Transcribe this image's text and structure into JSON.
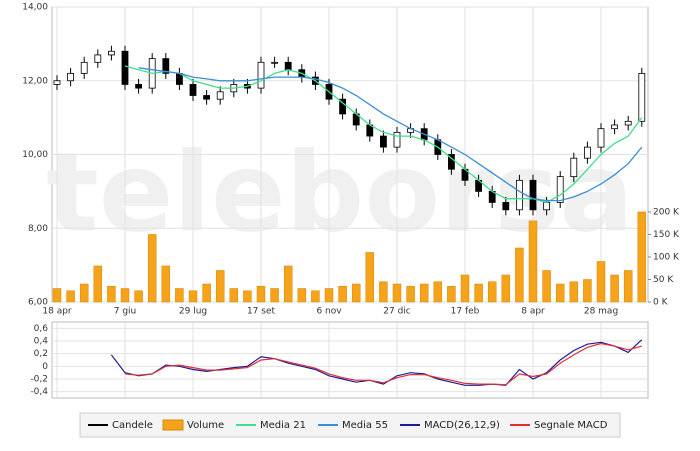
{
  "chart_data": [
    {
      "type": "candlestick",
      "watermark": "teleborsa",
      "categories": [
        "18 apr",
        null,
        null,
        null,
        null,
        "7 giu",
        null,
        null,
        null,
        null,
        "29 lug",
        null,
        null,
        null,
        null,
        "17 set",
        null,
        null,
        null,
        null,
        "6 nov",
        null,
        null,
        null,
        null,
        "27 dic",
        null,
        null,
        null,
        null,
        "17 feb",
        null,
        null,
        null,
        null,
        "8 apr",
        null,
        null,
        null,
        null,
        "28 mag",
        null,
        null,
        null
      ],
      "series": [
        {
          "name": "Candele",
          "color": "#000000",
          "open": [
            11.9,
            12.0,
            12.2,
            12.5,
            12.7,
            12.8,
            11.9,
            11.8,
            12.6,
            12.2,
            11.9,
            11.6,
            11.5,
            11.7,
            11.9,
            11.8,
            12.5,
            12.5,
            12.3,
            12.1,
            11.9,
            11.5,
            11.1,
            10.8,
            10.5,
            10.2,
            10.6,
            10.7,
            10.4,
            10.0,
            9.6,
            9.3,
            9.0,
            8.7,
            8.5,
            9.3,
            8.5,
            8.7,
            9.4,
            9.9,
            10.2,
            10.7,
            10.8,
            10.9
          ],
          "high": [
            12.15,
            12.35,
            12.65,
            12.85,
            12.95,
            12.95,
            12.05,
            12.75,
            12.75,
            12.35,
            12.05,
            11.75,
            11.85,
            12.05,
            12.05,
            12.65,
            12.65,
            12.65,
            12.45,
            12.25,
            12.05,
            11.65,
            11.25,
            10.95,
            10.65,
            10.75,
            10.85,
            10.85,
            10.55,
            10.15,
            9.75,
            9.45,
            9.15,
            8.85,
            9.45,
            9.45,
            8.85,
            9.55,
            10.05,
            10.35,
            10.85,
            10.95,
            11.05,
            12.35
          ],
          "low": [
            11.75,
            11.85,
            12.05,
            12.35,
            12.55,
            11.75,
            11.65,
            11.65,
            12.05,
            11.75,
            11.45,
            11.35,
            11.35,
            11.55,
            11.65,
            11.65,
            12.35,
            12.15,
            11.95,
            11.75,
            11.35,
            10.95,
            10.65,
            10.35,
            10.05,
            10.05,
            10.45,
            10.25,
            9.85,
            9.45,
            9.15,
            8.85,
            8.55,
            8.35,
            8.35,
            8.35,
            8.35,
            8.55,
            9.25,
            9.75,
            10.05,
            10.55,
            10.65,
            10.75
          ],
          "close": [
            12.0,
            12.2,
            12.5,
            12.7,
            12.8,
            11.9,
            11.8,
            12.6,
            12.2,
            11.9,
            11.6,
            11.5,
            11.7,
            11.9,
            11.8,
            12.5,
            12.5,
            12.3,
            12.1,
            11.9,
            11.5,
            11.1,
            10.8,
            10.5,
            10.2,
            10.6,
            10.7,
            10.4,
            10.0,
            9.6,
            9.3,
            9.0,
            8.7,
            8.5,
            9.3,
            8.5,
            8.7,
            9.4,
            9.9,
            10.2,
            10.7,
            10.8,
            10.9,
            12.2
          ]
        },
        {
          "name": "Volume",
          "color": "#f5a31a",
          "type": "bar",
          "axis": "y2",
          "values": [
            30,
            25,
            40,
            80,
            35,
            30,
            25,
            150,
            80,
            30,
            25,
            40,
            70,
            30,
            25,
            35,
            30,
            80,
            30,
            25,
            30,
            35,
            40,
            110,
            45,
            40,
            35,
            40,
            45,
            35,
            60,
            40,
            45,
            60,
            120,
            180,
            70,
            40,
            45,
            50,
            90,
            60,
            70,
            200
          ]
        },
        {
          "name": "Media 21",
          "color": "#3ee08c",
          "type": "line",
          "values": [
            null,
            null,
            null,
            null,
            null,
            12.4,
            12.3,
            12.2,
            12.25,
            12.2,
            12.0,
            11.9,
            11.8,
            11.8,
            11.85,
            12.0,
            12.2,
            12.3,
            12.2,
            12.0,
            11.7,
            11.4,
            11.1,
            10.8,
            10.6,
            10.5,
            10.5,
            10.4,
            10.2,
            9.9,
            9.6,
            9.3,
            9.0,
            8.8,
            8.8,
            8.8,
            8.7,
            8.9,
            9.2,
            9.6,
            10.0,
            10.3,
            10.5,
            11.0
          ]
        },
        {
          "name": "Media 55",
          "color": "#3a8fd8",
          "type": "line",
          "values": [
            null,
            null,
            null,
            null,
            null,
            null,
            12.35,
            12.3,
            12.25,
            12.2,
            12.1,
            12.05,
            12.0,
            12.0,
            12.0,
            12.05,
            12.1,
            12.1,
            12.1,
            12.05,
            11.95,
            11.8,
            11.6,
            11.35,
            11.1,
            10.9,
            10.7,
            10.55,
            10.4,
            10.2,
            10.0,
            9.75,
            9.5,
            9.25,
            9.0,
            8.8,
            8.75,
            8.75,
            8.85,
            9.0,
            9.2,
            9.45,
            9.75,
            10.2
          ]
        }
      ],
      "ylim": [
        6,
        14
      ],
      "yticks": [
        {
          "value": 6,
          "label": "6,00"
        },
        {
          "value": 8,
          "label": "8,00"
        },
        {
          "value": 10,
          "label": "10,00"
        },
        {
          "value": 12,
          "label": "12,00"
        },
        {
          "value": 14,
          "label": "14,00"
        }
      ],
      "y2lim": [
        0,
        655
      ],
      "y2ticks": [
        {
          "value": 0,
          "label": "0 K"
        },
        {
          "value": 50,
          "label": "50 K"
        },
        {
          "value": 100,
          "label": "100 K"
        },
        {
          "value": 150,
          "label": "150 K"
        },
        {
          "value": 200,
          "label": "200 K"
        }
      ],
      "grid": true
    },
    {
      "type": "line",
      "series": [
        {
          "name": "MACD(26,12,9)",
          "color": "#1c1c9c",
          "values": [
            null,
            null,
            null,
            null,
            0.18,
            -0.1,
            -0.15,
            -0.12,
            0.02,
            0.0,
            -0.05,
            -0.08,
            -0.05,
            -0.02,
            0.0,
            0.15,
            0.12,
            0.05,
            0.0,
            -0.05,
            -0.15,
            -0.2,
            -0.25,
            -0.22,
            -0.28,
            -0.15,
            -0.1,
            -0.12,
            -0.2,
            -0.25,
            -0.3,
            -0.3,
            -0.28,
            -0.3,
            -0.05,
            -0.2,
            -0.1,
            0.1,
            0.25,
            0.35,
            0.38,
            0.32,
            0.22,
            0.42
          ]
        },
        {
          "name": "Segnale MACD",
          "color": "#e03030",
          "values": [
            null,
            null,
            null,
            null,
            null,
            -0.12,
            -0.14,
            -0.12,
            0.0,
            0.02,
            -0.02,
            -0.06,
            -0.06,
            -0.04,
            -0.02,
            0.1,
            0.12,
            0.07,
            0.02,
            -0.03,
            -0.12,
            -0.18,
            -0.22,
            -0.22,
            -0.26,
            -0.18,
            -0.13,
            -0.13,
            -0.18,
            -0.22,
            -0.27,
            -0.28,
            -0.28,
            -0.29,
            -0.12,
            -0.16,
            -0.12,
            0.05,
            0.18,
            0.3,
            0.36,
            0.32,
            0.26,
            0.32
          ]
        }
      ],
      "ylim": [
        -0.5,
        0.7
      ],
      "yticks": [
        {
          "value": 0.6,
          "label": "0,6"
        },
        {
          "value": 0.4,
          "label": "0,4"
        },
        {
          "value": 0.2,
          "label": "0,2"
        },
        0,
        {
          "value": -0.2,
          "label": "-0,2"
        },
        {
          "value": -0.4,
          "label": "-0,4"
        }
      ],
      "grid": true
    }
  ]
}
